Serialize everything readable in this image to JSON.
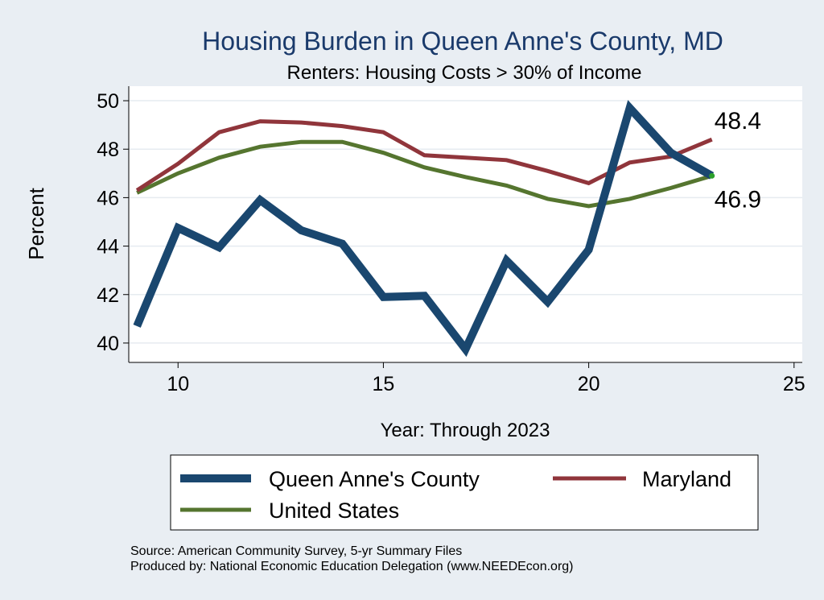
{
  "chart_data": {
    "type": "line",
    "title": "Housing Burden in Queen Anne's County, MD",
    "subtitle": "Renters: Housing Costs > 30% of Income",
    "xlabel": "Year: Through 2023",
    "ylabel": "Percent",
    "xlim": [
      8.8,
      25.2
    ],
    "ylim": [
      39.2,
      50.6
    ],
    "xticks": [
      10,
      15,
      20,
      25
    ],
    "yticks": [
      40,
      42,
      44,
      46,
      48,
      50
    ],
    "grid": true,
    "x": [
      9,
      10,
      11,
      12,
      13,
      14,
      15,
      16,
      17,
      18,
      19,
      20,
      21,
      22,
      23
    ],
    "series": [
      {
        "name": "Queen Anne's County",
        "color": "#1a476f",
        "values": [
          40.7,
          44.75,
          43.95,
          45.9,
          44.65,
          44.1,
          41.9,
          41.95,
          39.75,
          43.4,
          41.7,
          43.85,
          49.7,
          47.85,
          46.9
        ]
      },
      {
        "name": "Maryland",
        "color": "#90353b",
        "values": [
          46.3,
          47.4,
          48.7,
          49.15,
          49.1,
          48.95,
          48.7,
          47.75,
          47.65,
          47.55,
          47.1,
          46.6,
          47.45,
          47.7,
          48.4
        ]
      },
      {
        "name": "United States",
        "color": "#55752f",
        "values": [
          46.2,
          47.0,
          47.65,
          48.1,
          48.3,
          48.3,
          47.85,
          47.25,
          46.85,
          46.5,
          45.95,
          45.65,
          45.95,
          46.4,
          46.9
        ]
      }
    ],
    "annotations": [
      {
        "text": "48.4",
        "x": 23,
        "y": 48.4
      },
      {
        "text": "46.9",
        "x": 23,
        "y": 46.9
      }
    ],
    "legend_position": "bottom",
    "source_lines": [
      "Source: American Community Survey, 5-yr Summary Files",
      "Produced by: National Economic Education Delegation (www.NEEDEcon.org)"
    ]
  }
}
